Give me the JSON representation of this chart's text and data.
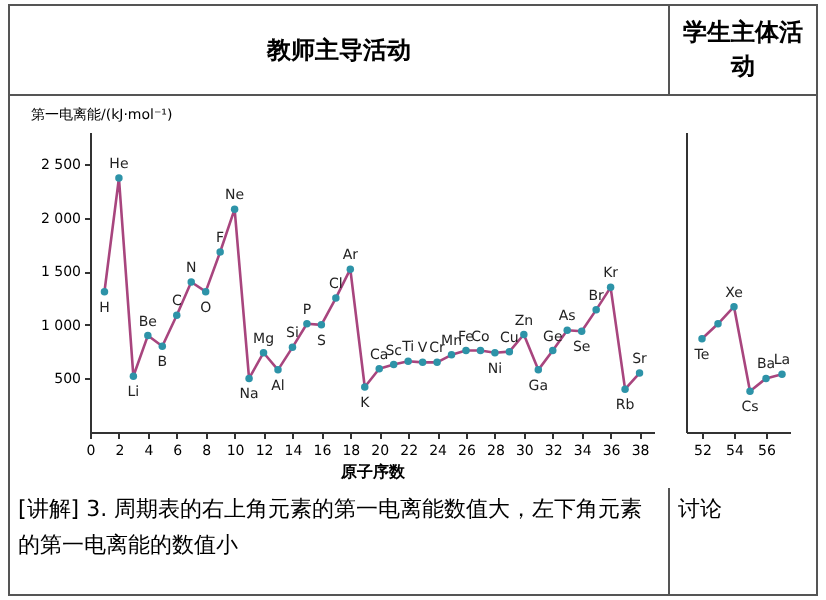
{
  "chart_data": [
    {
      "type": "line",
      "title": "教师主导活动",
      "xlabel": "原子序数",
      "ylabel": "第一电离能/(kJ·mol⁻¹)",
      "xlim": [
        0,
        39
      ],
      "ylim": [
        0,
        2800
      ],
      "xticks": [
        0,
        2,
        4,
        6,
        8,
        10,
        12,
        14,
        16,
        18,
        20,
        22,
        24,
        26,
        28,
        30,
        32,
        34,
        36,
        38
      ],
      "yticks": [
        {
          "value": 500,
          "label": "500"
        },
        {
          "value": 1000,
          "label": "1 000"
        },
        {
          "value": 1500,
          "label": "1 500"
        },
        {
          "value": 2000,
          "label": "2 000"
        },
        {
          "value": 2500,
          "label": "2 500"
        }
      ],
      "grid": false,
      "marker": "circle",
      "line_style": "solid",
      "x": [
        1,
        2,
        3,
        4,
        5,
        6,
        7,
        8,
        9,
        10,
        11,
        12,
        13,
        14,
        15,
        16,
        17,
        18,
        19,
        20,
        21,
        22,
        23,
        24,
        25,
        26,
        27,
        28,
        29,
        30,
        31,
        32,
        33,
        34,
        35,
        36,
        37,
        38
      ],
      "series": [
        {
          "color": "#a8457e",
          "values": [
            1310,
            2370,
            520,
            900,
            800,
            1090,
            1400,
            1310,
            1680,
            2080,
            500,
            740,
            580,
            790,
            1010,
            1000,
            1250,
            1520,
            420,
            590,
            630,
            660,
            650,
            650,
            720,
            760,
            760,
            740,
            750,
            910,
            580,
            760,
            950,
            940,
            1140,
            1350,
            400,
            550
          ]
        }
      ],
      "annotations": [
        {
          "text": "H",
          "x": 1,
          "y": 1310
        },
        {
          "text": "He",
          "x": 2,
          "y": 2370
        },
        {
          "text": "Li",
          "x": 3,
          "y": 520
        },
        {
          "text": "Be",
          "x": 4,
          "y": 900
        },
        {
          "text": "B",
          "x": 5,
          "y": 800
        },
        {
          "text": "C",
          "x": 6,
          "y": 1090
        },
        {
          "text": "N",
          "x": 7,
          "y": 1400
        },
        {
          "text": "O",
          "x": 8,
          "y": 1310
        },
        {
          "text": "F",
          "x": 9,
          "y": 1680
        },
        {
          "text": "Ne",
          "x": 10,
          "y": 2080
        },
        {
          "text": "Na",
          "x": 11,
          "y": 500
        },
        {
          "text": "Mg",
          "x": 12,
          "y": 740
        },
        {
          "text": "Al",
          "x": 13,
          "y": 580
        },
        {
          "text": "Si",
          "x": 14,
          "y": 790
        },
        {
          "text": "P",
          "x": 15,
          "y": 1010
        },
        {
          "text": "S",
          "x": 16,
          "y": 1000
        },
        {
          "text": "Cl",
          "x": 17,
          "y": 1250
        },
        {
          "text": "Ar",
          "x": 18,
          "y": 1520
        },
        {
          "text": "K",
          "x": 19,
          "y": 420
        },
        {
          "text": "Ca",
          "x": 20,
          "y": 590
        },
        {
          "text": "Sc",
          "x": 21,
          "y": 630
        },
        {
          "text": "Ti",
          "x": 22,
          "y": 660
        },
        {
          "text": "V",
          "x": 23,
          "y": 650
        },
        {
          "text": "Cr",
          "x": 24,
          "y": 650
        },
        {
          "text": "Mn",
          "x": 25,
          "y": 720
        },
        {
          "text": "Fe",
          "x": 26,
          "y": 760
        },
        {
          "text": "Co",
          "x": 27,
          "y": 760
        },
        {
          "text": "Ni",
          "x": 28,
          "y": 740
        },
        {
          "text": "Cu",
          "x": 29,
          "y": 750
        },
        {
          "text": "Zn",
          "x": 30,
          "y": 910
        },
        {
          "text": "Ga",
          "x": 31,
          "y": 580
        },
        {
          "text": "Ge",
          "x": 32,
          "y": 760
        },
        {
          "text": "As",
          "x": 33,
          "y": 950
        },
        {
          "text": "Se",
          "x": 34,
          "y": 940
        },
        {
          "text": "Br",
          "x": 35,
          "y": 1140
        },
        {
          "text": "Kr",
          "x": 36,
          "y": 1350
        },
        {
          "text": "Rb",
          "x": 37,
          "y": 400
        },
        {
          "text": "Sr",
          "x": 38,
          "y": 550
        },
        "[讲解] 3. 周期表的右上角元素的第一电离能数值大，左下角元素的第一电离能的数值小"
      ]
    },
    {
      "type": "line",
      "title": "学生主体活动",
      "xlim": [
        51,
        57.5
      ],
      "ylim": [
        0,
        2800
      ],
      "xticks": [
        52,
        54,
        56
      ],
      "tick_labels": "x",
      "grid": false,
      "marker": "circle",
      "line_style": "solid",
      "x": [
        52,
        53,
        54,
        55,
        56,
        57
      ],
      "series": [
        {
          "color": "#a8457e",
          "values": [
            870,
            1010,
            1170,
            380,
            500,
            540
          ]
        }
      ],
      "annotations": [
        {
          "text": "Te",
          "x": 52,
          "y": 870
        },
        {
          "text": "Xe",
          "x": 54,
          "y": 1170
        },
        {
          "text": "Cs",
          "x": 55,
          "y": 380
        },
        {
          "text": "Ba",
          "x": 56,
          "y": 500
        },
        {
          "text": "La",
          "x": 57,
          "y": 540
        },
        "讨论"
      ]
    }
  ]
}
